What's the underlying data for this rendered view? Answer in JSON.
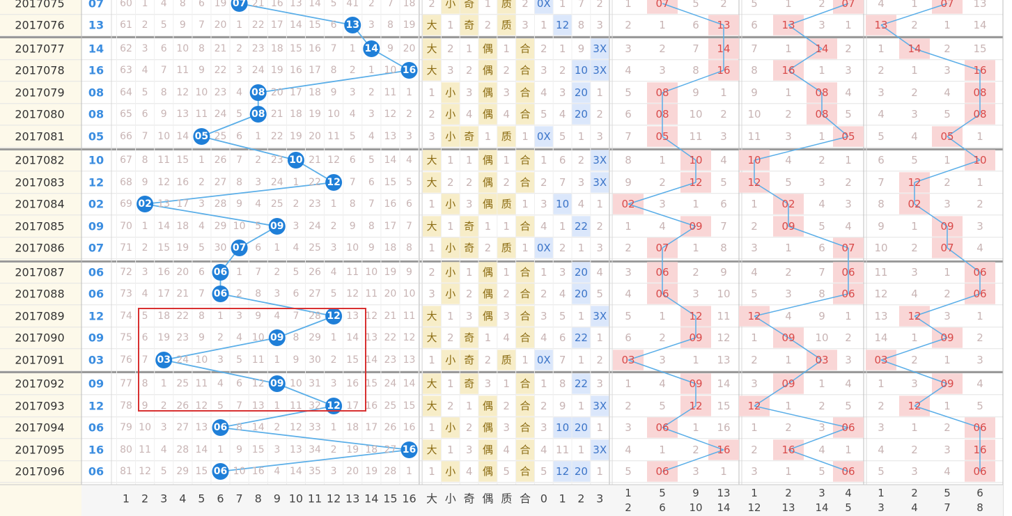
{
  "chart_data": {
    "type": "table",
    "colors": {
      "ball": "#1f7fd8",
      "line": "#5aaee8",
      "miss_text": "#c8b4b4",
      "red_cell": "#f9d6d6",
      "red_text": "#d84a4a",
      "blue_cell": "#dbe7fb",
      "blue_text": "#3b74c8",
      "yellow_cell": "#f7edc8",
      "yellow_text": "#8a6a10",
      "number_text": "#3b8de0",
      "highlight_box": "#d83030"
    },
    "footer": {
      "dist": [
        "1",
        "2",
        "3",
        "4",
        "5",
        "6",
        "7",
        "8",
        "9",
        "10",
        "11",
        "12",
        "13",
        "14",
        "15",
        "16"
      ],
      "attr": [
        "大",
        "小",
        "奇",
        "偶",
        "质",
        "合",
        "0",
        "1",
        "2",
        "3"
      ],
      "pairs": [
        [
          "1",
          "2"
        ],
        [
          "5",
          "6"
        ],
        [
          "9",
          "10"
        ],
        [
          "13",
          "14"
        ],
        [
          "1",
          "12"
        ],
        [
          "2",
          "13"
        ],
        [
          "3",
          "14"
        ],
        [
          "4",
          "5"
        ],
        [
          "1",
          "3"
        ],
        [
          "2",
          "4"
        ],
        [
          "5",
          "7"
        ],
        [
          "6",
          "8"
        ]
      ]
    },
    "rows": [
      {
        "issue": "2017075",
        "num": "07",
        "dist": [
          "60",
          "1",
          "4",
          "8",
          "6",
          "19",
          "07",
          "21",
          "16",
          "13",
          "14",
          "5",
          "41",
          "2",
          "7",
          "18"
        ],
        "attr": [
          "2",
          "小",
          "奇",
          "1",
          "质",
          "2",
          "0X",
          "1",
          "7",
          "2"
        ],
        "g": [
          "1",
          "07",
          "5",
          "2",
          "5",
          "1",
          "2",
          "07",
          "4",
          "1",
          "07",
          "13"
        ]
      },
      {
        "issue": "2017076",
        "num": "13",
        "dist": [
          "61",
          "2",
          "5",
          "9",
          "7",
          "20",
          "1",
          "22",
          "17",
          "14",
          "15",
          "6",
          "13",
          "3",
          "8",
          "19"
        ],
        "attr": [
          "大",
          "1",
          "奇",
          "2",
          "质",
          "3",
          "1",
          "12",
          "8",
          "3"
        ],
        "g": [
          "2",
          "1",
          "6",
          "13",
          "6",
          "13",
          "3",
          "1",
          "13",
          "2",
          "1",
          "14"
        ]
      },
      {
        "issue": "2017077",
        "num": "14",
        "dist": [
          "62",
          "3",
          "6",
          "10",
          "8",
          "21",
          "2",
          "23",
          "18",
          "15",
          "16",
          "7",
          "1",
          "14",
          "9",
          "20"
        ],
        "attr": [
          "大",
          "2",
          "1",
          "偶",
          "1",
          "合",
          "2",
          "1",
          "9",
          "3X"
        ],
        "g": [
          "3",
          "2",
          "7",
          "14",
          "7",
          "1",
          "14",
          "2",
          "1",
          "14",
          "2",
          "15"
        ]
      },
      {
        "issue": "2017078",
        "num": "16",
        "dist": [
          "63",
          "4",
          "7",
          "11",
          "9",
          "22",
          "3",
          "24",
          "19",
          "16",
          "17",
          "8",
          "2",
          "1",
          "10",
          "16"
        ],
        "attr": [
          "大",
          "3",
          "2",
          "偶",
          "2",
          "合",
          "3",
          "2",
          "10",
          "3X"
        ],
        "g": [
          "4",
          "3",
          "8",
          "16",
          "8",
          "16",
          "1",
          "3",
          "2",
          "1",
          "3",
          "16"
        ]
      },
      {
        "issue": "2017079",
        "num": "08",
        "dist": [
          "64",
          "5",
          "8",
          "12",
          "10",
          "23",
          "4",
          "08",
          "20",
          "17",
          "18",
          "9",
          "3",
          "2",
          "11",
          "1"
        ],
        "attr": [
          "1",
          "小",
          "3",
          "偶",
          "3",
          "合",
          "4",
          "3",
          "20",
          "1"
        ],
        "g": [
          "5",
          "08",
          "9",
          "1",
          "9",
          "1",
          "08",
          "4",
          "3",
          "2",
          "4",
          "08"
        ]
      },
      {
        "issue": "2017080",
        "num": "08",
        "dist": [
          "65",
          "6",
          "9",
          "13",
          "11",
          "24",
          "5",
          "08",
          "21",
          "18",
          "19",
          "10",
          "4",
          "3",
          "12",
          "2"
        ],
        "attr": [
          "2",
          "小",
          "4",
          "偶",
          "4",
          "合",
          "5",
          "4",
          "20",
          "2"
        ],
        "g": [
          "6",
          "08",
          "10",
          "2",
          "10",
          "2",
          "08",
          "5",
          "4",
          "3",
          "5",
          "08"
        ]
      },
      {
        "issue": "2017081",
        "num": "05",
        "dist": [
          "66",
          "7",
          "10",
          "14",
          "05",
          "25",
          "6",
          "1",
          "22",
          "19",
          "20",
          "11",
          "5",
          "4",
          "13",
          "3"
        ],
        "attr": [
          "3",
          "小",
          "奇",
          "1",
          "质",
          "1",
          "0X",
          "5",
          "1",
          "3"
        ],
        "g": [
          "7",
          "05",
          "11",
          "3",
          "11",
          "3",
          "1",
          "05",
          "5",
          "4",
          "05",
          "1"
        ]
      },
      {
        "issue": "2017082",
        "num": "10",
        "dist": [
          "67",
          "8",
          "11",
          "15",
          "1",
          "26",
          "7",
          "2",
          "23",
          "10",
          "21",
          "12",
          "6",
          "5",
          "14",
          "4"
        ],
        "attr": [
          "大",
          "1",
          "1",
          "偶",
          "1",
          "合",
          "1",
          "6",
          "2",
          "3X"
        ],
        "g": [
          "8",
          "1",
          "10",
          "4",
          "10",
          "4",
          "2",
          "1",
          "6",
          "5",
          "1",
          "10"
        ]
      },
      {
        "issue": "2017083",
        "num": "12",
        "dist": [
          "68",
          "9",
          "12",
          "16",
          "2",
          "27",
          "8",
          "3",
          "24",
          "1",
          "22",
          "12",
          "7",
          "6",
          "15",
          "5"
        ],
        "attr": [
          "大",
          "2",
          "2",
          "偶",
          "2",
          "合",
          "2",
          "7",
          "3",
          "3X"
        ],
        "g": [
          "9",
          "2",
          "12",
          "5",
          "12",
          "5",
          "3",
          "2",
          "7",
          "12",
          "2",
          "1"
        ]
      },
      {
        "issue": "2017084",
        "num": "02",
        "dist": [
          "69",
          "02",
          "13",
          "17",
          "3",
          "28",
          "9",
          "4",
          "25",
          "2",
          "23",
          "1",
          "8",
          "7",
          "16",
          "6"
        ],
        "attr": [
          "1",
          "小",
          "3",
          "偶",
          "质",
          "1",
          "3",
          "10",
          "4",
          "1"
        ],
        "g": [
          "02",
          "3",
          "1",
          "6",
          "1",
          "02",
          "4",
          "3",
          "8",
          "02",
          "3",
          "2"
        ]
      },
      {
        "issue": "2017085",
        "num": "09",
        "dist": [
          "70",
          "1",
          "14",
          "18",
          "4",
          "29",
          "10",
          "5",
          "09",
          "3",
          "24",
          "2",
          "9",
          "8",
          "17",
          "7"
        ],
        "attr": [
          "大",
          "1",
          "奇",
          "1",
          "1",
          "合",
          "4",
          "1",
          "22",
          "2"
        ],
        "g": [
          "1",
          "4",
          "09",
          "7",
          "2",
          "09",
          "5",
          "4",
          "9",
          "1",
          "09",
          "3"
        ]
      },
      {
        "issue": "2017086",
        "num": "07",
        "dist": [
          "71",
          "2",
          "15",
          "19",
          "5",
          "30",
          "07",
          "6",
          "1",
          "4",
          "25",
          "3",
          "10",
          "9",
          "18",
          "8"
        ],
        "attr": [
          "1",
          "小",
          "奇",
          "2",
          "质",
          "1",
          "0X",
          "2",
          "1",
          "3"
        ],
        "g": [
          "2",
          "07",
          "1",
          "8",
          "3",
          "1",
          "6",
          "07",
          "10",
          "2",
          "07",
          "4"
        ]
      },
      {
        "issue": "2017087",
        "num": "06",
        "dist": [
          "72",
          "3",
          "16",
          "20",
          "6",
          "06",
          "1",
          "7",
          "2",
          "5",
          "26",
          "4",
          "11",
          "10",
          "19",
          "9"
        ],
        "attr": [
          "2",
          "小",
          "1",
          "偶",
          "1",
          "合",
          "1",
          "3",
          "20",
          "4"
        ],
        "g": [
          "3",
          "06",
          "2",
          "9",
          "4",
          "2",
          "7",
          "06",
          "11",
          "3",
          "1",
          "06"
        ]
      },
      {
        "issue": "2017088",
        "num": "06",
        "dist": [
          "73",
          "4",
          "17",
          "21",
          "7",
          "06",
          "2",
          "8",
          "3",
          "6",
          "27",
          "5",
          "12",
          "11",
          "20",
          "10"
        ],
        "attr": [
          "3",
          "小",
          "2",
          "偶",
          "2",
          "合",
          "2",
          "4",
          "20",
          "5"
        ],
        "g": [
          "4",
          "06",
          "3",
          "10",
          "5",
          "3",
          "8",
          "06",
          "12",
          "4",
          "2",
          "06"
        ]
      },
      {
        "issue": "2017089",
        "num": "12",
        "dist": [
          "74",
          "5",
          "18",
          "22",
          "8",
          "1",
          "3",
          "9",
          "4",
          "7",
          "28",
          "12",
          "13",
          "12",
          "21",
          "11"
        ],
        "attr": [
          "大",
          "1",
          "3",
          "偶",
          "3",
          "合",
          "3",
          "5",
          "1",
          "3X"
        ],
        "g": [
          "5",
          "1",
          "12",
          "11",
          "12",
          "4",
          "9",
          "1",
          "13",
          "12",
          "3",
          "1"
        ]
      },
      {
        "issue": "2017090",
        "num": "09",
        "dist": [
          "75",
          "6",
          "19",
          "23",
          "9",
          "2",
          "4",
          "10",
          "09",
          "8",
          "29",
          "1",
          "14",
          "13",
          "22",
          "12"
        ],
        "attr": [
          "大",
          "2",
          "奇",
          "1",
          "4",
          "合",
          "4",
          "6",
          "22",
          "1"
        ],
        "g": [
          "6",
          "2",
          "09",
          "12",
          "1",
          "09",
          "10",
          "2",
          "14",
          "1",
          "09",
          "2"
        ]
      },
      {
        "issue": "2017091",
        "num": "03",
        "dist": [
          "76",
          "7",
          "03",
          "24",
          "10",
          "3",
          "5",
          "11",
          "1",
          "9",
          "30",
          "2",
          "15",
          "14",
          "23",
          "13"
        ],
        "attr": [
          "1",
          "小",
          "奇",
          "2",
          "质",
          "1",
          "0X",
          "7",
          "1",
          "2"
        ],
        "g": [
          "03",
          "3",
          "1",
          "13",
          "2",
          "1",
          "03",
          "3",
          "03",
          "2",
          "1",
          "3"
        ]
      },
      {
        "issue": "2017092",
        "num": "09",
        "dist": [
          "77",
          "8",
          "1",
          "25",
          "11",
          "4",
          "6",
          "12",
          "09",
          "10",
          "31",
          "3",
          "16",
          "15",
          "24",
          "14"
        ],
        "attr": [
          "大",
          "1",
          "奇",
          "3",
          "1",
          "合",
          "1",
          "8",
          "22",
          "3"
        ],
        "g": [
          "1",
          "4",
          "09",
          "14",
          "3",
          "09",
          "1",
          "4",
          "1",
          "3",
          "09",
          "4"
        ]
      },
      {
        "issue": "2017093",
        "num": "12",
        "dist": [
          "78",
          "9",
          "2",
          "26",
          "12",
          "5",
          "7",
          "13",
          "1",
          "11",
          "32",
          "12",
          "17",
          "16",
          "25",
          "15"
        ],
        "attr": [
          "大",
          "2",
          "1",
          "偶",
          "2",
          "合",
          "2",
          "9",
          "1",
          "3X"
        ],
        "g": [
          "2",
          "5",
          "12",
          "15",
          "12",
          "1",
          "2",
          "5",
          "2",
          "12",
          "1",
          "5"
        ]
      },
      {
        "issue": "2017094",
        "num": "06",
        "dist": [
          "79",
          "10",
          "3",
          "27",
          "13",
          "06",
          "8",
          "14",
          "2",
          "12",
          "33",
          "1",
          "18",
          "17",
          "26",
          "16"
        ],
        "attr": [
          "1",
          "小",
          "2",
          "偶",
          "3",
          "合",
          "3",
          "10",
          "20",
          "1"
        ],
        "g": [
          "3",
          "06",
          "1",
          "16",
          "1",
          "2",
          "3",
          "06",
          "3",
          "1",
          "2",
          "06"
        ]
      },
      {
        "issue": "2017095",
        "num": "16",
        "dist": [
          "80",
          "11",
          "4",
          "28",
          "14",
          "1",
          "9",
          "15",
          "3",
          "13",
          "34",
          "2",
          "19",
          "18",
          "27",
          "16"
        ],
        "attr": [
          "大",
          "1",
          "3",
          "偶",
          "4",
          "合",
          "4",
          "11",
          "1",
          "3X"
        ],
        "g": [
          "4",
          "1",
          "2",
          "16",
          "2",
          "16",
          "4",
          "1",
          "4",
          "2",
          "3",
          "16"
        ]
      },
      {
        "issue": "2017096",
        "num": "06",
        "dist": [
          "81",
          "12",
          "5",
          "29",
          "15",
          "06",
          "10",
          "16",
          "4",
          "14",
          "35",
          "3",
          "20",
          "19",
          "28",
          "1"
        ],
        "attr": [
          "1",
          "小",
          "4",
          "偶",
          "5",
          "合",
          "5",
          "12",
          "20",
          "1"
        ],
        "g": [
          "5",
          "06",
          "3",
          "1",
          "3",
          "1",
          "5",
          "06",
          "5",
          "3",
          "4",
          "06"
        ]
      }
    ]
  }
}
